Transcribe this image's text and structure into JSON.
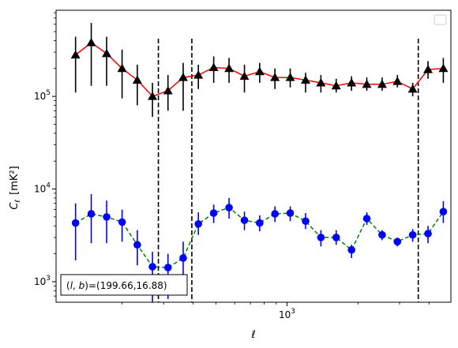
{
  "chart_data": {
    "type": "line",
    "xlabel": "ℓ",
    "ylabel_main": "C",
    "ylabel_sub": "ℓ",
    "ylabel_unit": "[mK²]",
    "x_scale": "log",
    "y_scale": "log",
    "xlim": [
      105,
      4950
    ],
    "ylim": [
      600,
      850000
    ],
    "x_tick_labels": [
      {
        "value": 1000,
        "base": "10",
        "exp": "3"
      }
    ],
    "y_tick_labels": [
      {
        "value": 1000,
        "base": "10",
        "exp": "3"
      },
      {
        "value": 10000,
        "base": "10",
        "exp": "4"
      },
      {
        "value": 100000,
        "base": "10",
        "exp": "5"
      }
    ],
    "grid": false,
    "legend": "top-right, empty",
    "annotation": {
      "text": "(l, b)=(199.66,16.88)",
      "prefix": "(",
      "var1": "l",
      "sep": ", ",
      "var2": "b",
      "suffix": ")=(199.66,16.88)",
      "position": "bottom-left"
    },
    "vertical_lines": [
      285,
      395,
      3600
    ],
    "series": [
      {
        "color": "#ff0000",
        "marker_color": "#000000",
        "marker": "triangle",
        "line_style": "solid",
        "error_color": "#000000",
        "x": [
          127,
          148,
          172,
          200,
          232,
          269,
          313,
          363,
          421,
          489,
          568,
          660,
          766,
          889,
          1032,
          1199,
          1392,
          1616,
          1877,
          2179,
          2530,
          2937,
          3410,
          3960,
          4598
        ],
        "y": [
          280000,
          380000,
          290000,
          200000,
          150000,
          100000,
          115000,
          160000,
          170000,
          205000,
          200000,
          165000,
          185000,
          160000,
          160000,
          150000,
          140000,
          130000,
          140000,
          135000,
          135000,
          145000,
          120000,
          195000,
          200000
        ],
        "y_err_low": [
          110000,
          130000,
          130000,
          95000,
          80000,
          60000,
          70000,
          70000,
          120000,
          140000,
          140000,
          110000,
          140000,
          120000,
          125000,
          110000,
          110000,
          110000,
          115000,
          115000,
          115000,
          125000,
          100000,
          155000,
          140000
        ],
        "y_err_high": [
          440000,
          620000,
          440000,
          320000,
          220000,
          140000,
          170000,
          230000,
          220000,
          270000,
          260000,
          220000,
          230000,
          200000,
          200000,
          180000,
          170000,
          155000,
          165000,
          160000,
          160000,
          170000,
          140000,
          240000,
          260000
        ]
      },
      {
        "color": "#008000",
        "marker_color": "#0000ff",
        "marker": "circle",
        "line_style": "dashed",
        "error_color": "#0000ff",
        "x": [
          127,
          148,
          172,
          200,
          232,
          269,
          313,
          363,
          421,
          489,
          568,
          660,
          766,
          889,
          1032,
          1199,
          1392,
          1616,
          1877,
          2179,
          2530,
          2937,
          3410,
          3960,
          4598
        ],
        "y": [
          4300,
          5400,
          5000,
          4400,
          2500,
          1450,
          1420,
          1800,
          4200,
          5500,
          6300,
          4600,
          4300,
          5400,
          5500,
          4500,
          3000,
          3000,
          2200,
          4800,
          3200,
          2700,
          3200,
          3300,
          5700
        ],
        "y_err_low": [
          1700,
          2600,
          2600,
          2700,
          1500,
          600,
          650,
          1100,
          3200,
          4300,
          4800,
          3600,
          3500,
          4400,
          4500,
          3700,
          2400,
          2500,
          1800,
          4100,
          2800,
          2400,
          2700,
          2600,
          4300
        ],
        "y_err_high": [
          7000,
          8800,
          7500,
          6000,
          3600,
          2100,
          2000,
          2700,
          5600,
          6800,
          8000,
          5700,
          5200,
          6500,
          6500,
          5500,
          3600,
          3600,
          2500,
          5600,
          3600,
          3000,
          3700,
          4000,
          7400
        ]
      }
    ]
  }
}
